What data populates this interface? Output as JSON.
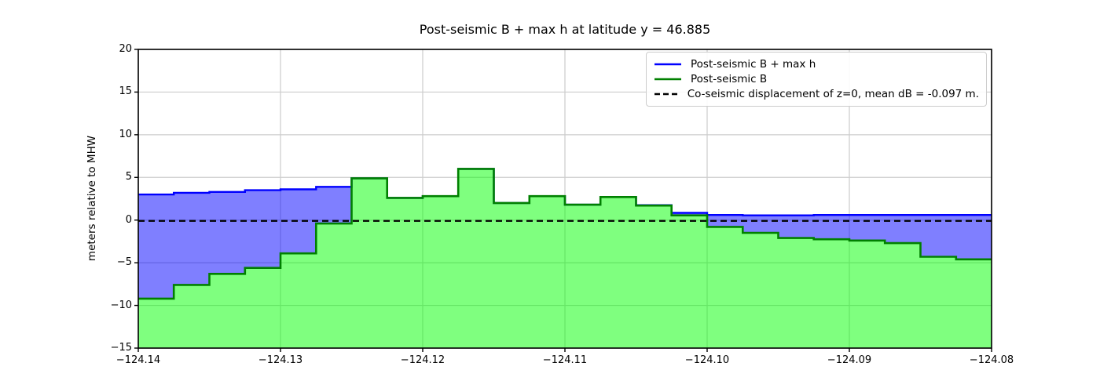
{
  "chart_data": {
    "type": "area",
    "title": "Post-seismic B + max h at latitude y = 46.885",
    "ylabel": "meters relative to MHW",
    "xlabel": "",
    "xlim": [
      -124.14,
      -124.08
    ],
    "ylim": [
      -15,
      20
    ],
    "grid": true,
    "legend_position": "upper right",
    "x_step_edges": [
      -124.14,
      -124.1375,
      -124.135,
      -124.1325,
      -124.13,
      -124.1275,
      -124.125,
      -124.1225,
      -124.12,
      -124.1175,
      -124.115,
      -124.1125,
      -124.11,
      -124.1075,
      -124.105,
      -124.1025,
      -124.1,
      -124.0975,
      -124.095,
      -124.0925,
      -124.09,
      -124.0875,
      -124.085,
      -124.0825,
      -124.08
    ],
    "series": [
      {
        "name": "Post-seismic B + max h",
        "values": [
          3.0,
          3.2,
          3.3,
          3.5,
          3.6,
          3.9,
          4.9,
          2.6,
          2.8,
          6.0,
          2.0,
          2.8,
          1.8,
          2.7,
          1.75,
          0.85,
          0.6,
          0.55,
          0.55,
          0.6,
          0.6,
          0.6,
          0.6,
          0.6
        ]
      },
      {
        "name": "Post-seismic B",
        "values": [
          -9.2,
          -7.6,
          -6.3,
          -5.6,
          -3.9,
          -0.4,
          4.9,
          2.6,
          2.8,
          6.0,
          2.0,
          2.8,
          1.8,
          2.7,
          1.7,
          0.55,
          -0.8,
          -1.5,
          -2.1,
          -2.25,
          -2.4,
          -2.7,
          -4.3,
          -4.6
        ]
      }
    ],
    "dashed_line": {
      "y": -0.097,
      "label": "Co-seismic displacement of z=0, mean dB = -0.097 m."
    },
    "x_ticks": [
      {
        "v": -124.14,
        "label": "−124.14"
      },
      {
        "v": -124.13,
        "label": "−124.13"
      },
      {
        "v": -124.12,
        "label": "−124.12"
      },
      {
        "v": -124.11,
        "label": "−124.11"
      },
      {
        "v": -124.1,
        "label": "−124.10"
      },
      {
        "v": -124.09,
        "label": "−124.09"
      },
      {
        "v": -124.08,
        "label": "−124.08"
      }
    ],
    "y_ticks": [
      {
        "v": -15,
        "label": "−15"
      },
      {
        "v": -10,
        "label": "−10"
      },
      {
        "v": -5,
        "label": "−5"
      },
      {
        "v": 0,
        "label": "0"
      },
      {
        "v": 5,
        "label": "5"
      },
      {
        "v": 10,
        "label": "10"
      },
      {
        "v": 15,
        "label": "15"
      },
      {
        "v": 20,
        "label": "20"
      }
    ],
    "legend": {
      "entries": [
        {
          "label": "Post-seismic B + max h",
          "color": "#0000ff",
          "dash": false
        },
        {
          "label": "Post-seismic B",
          "color": "#008000",
          "dash": false
        },
        {
          "label": "Co-seismic displacement of z=0, mean dB = -0.097 m.",
          "color": "#000000",
          "dash": true
        }
      ]
    },
    "colors": {
      "blue_line": "#0000ff",
      "blue_fill": "#0000ff",
      "green_line": "#008000",
      "green_fill": "#00ff00",
      "fill_opacity": 0.5,
      "dashed_line": "#000000",
      "grid": "#cccccc",
      "axis": "#000000"
    }
  }
}
